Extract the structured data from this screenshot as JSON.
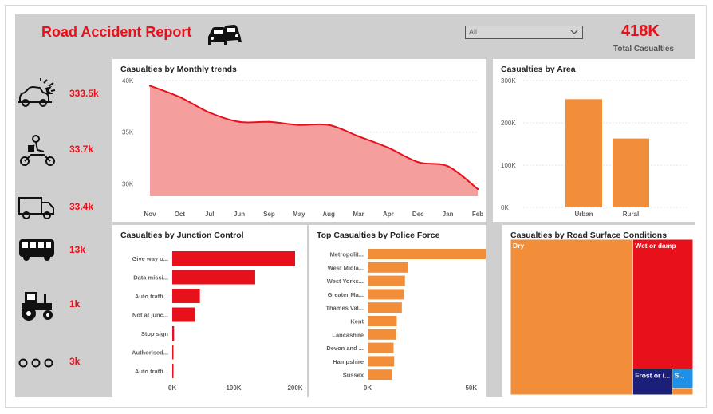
{
  "header": {
    "title": "Road Accident Report",
    "slicer_value": "All",
    "total_value": "418K",
    "total_label": "Total Casualties"
  },
  "vehicles": [
    {
      "icon": "car-crash-icon",
      "value": "333.5k"
    },
    {
      "icon": "motorbike-icon",
      "value": "33.7k"
    },
    {
      "icon": "truck-icon",
      "value": "33.4k"
    },
    {
      "icon": "bus-icon",
      "value": "13k"
    },
    {
      "icon": "tractor-icon",
      "value": "1k"
    },
    {
      "icon": "other-icon",
      "value": "3k"
    }
  ],
  "colors": {
    "red": "#e8101a",
    "orange": "#f28e3a",
    "line_fill": "#f59e9e",
    "navy": "#1b1f7a",
    "blue": "#1e90e8"
  },
  "chart_data": [
    {
      "id": "monthly",
      "type": "area",
      "title": "Casualties by Monthly trends",
      "categories": [
        "Nov",
        "Oct",
        "Jul",
        "Jun",
        "Sep",
        "May",
        "Aug",
        "Mar",
        "Apr",
        "Dec",
        "Jan",
        "Feb"
      ],
      "values": [
        39500,
        38400,
        36900,
        36000,
        36000,
        35700,
        35700,
        34600,
        33500,
        32100,
        31700,
        29500
      ],
      "ylim": [
        28800,
        40000
      ],
      "yticks": [
        {
          "v": 40000,
          "label": "40K"
        },
        {
          "v": 35000,
          "label": "35K"
        },
        {
          "v": 30000,
          "label": "30K"
        }
      ]
    },
    {
      "id": "area",
      "type": "bar",
      "title": "Casualties by Area",
      "categories": [
        "Urban",
        "Rural"
      ],
      "values": [
        256000,
        163000
      ],
      "ylim": [
        0,
        300000
      ],
      "yticks": [
        {
          "v": 300000,
          "label": "300K"
        },
        {
          "v": 200000,
          "label": "200K"
        },
        {
          "v": 100000,
          "label": "100K"
        },
        {
          "v": 0,
          "label": "0K"
        }
      ]
    },
    {
      "id": "junction",
      "type": "bar",
      "orientation": "horizontal",
      "title": "Casualties by Junction Control",
      "categories": [
        "Give way o...",
        "Data missi...",
        "Auto traffi...",
        "Not at junc...",
        "Stop sign",
        "Authorised...",
        "Auto traffi..."
      ],
      "values": [
        200000,
        135000,
        45000,
        37000,
        3000,
        1500,
        1200
      ],
      "xlim": [
        0,
        200000
      ],
      "xticks": [
        {
          "v": 0,
          "label": "0K"
        },
        {
          "v": 100000,
          "label": "100K"
        },
        {
          "v": 200000,
          "label": "200K"
        }
      ]
    },
    {
      "id": "police",
      "type": "bar",
      "orientation": "horizontal",
      "title": "Top Casualties by Police Force",
      "categories": [
        "Metropolit...",
        "West Midla...",
        "West Yorks...",
        "Greater Ma...",
        "Thames Val...",
        "Kent",
        "Lancashire",
        "Devon and ...",
        "Hampshire",
        "Sussex"
      ],
      "values": [
        57000,
        19500,
        18000,
        17500,
        16500,
        14000,
        13800,
        12500,
        12800,
        11800
      ],
      "xlim": [
        0,
        57000
      ],
      "xticks": [
        {
          "v": 0,
          "label": "0K"
        },
        {
          "v": 50000,
          "label": "50K"
        }
      ]
    },
    {
      "id": "surface",
      "type": "treemap",
      "title": "Casualties by Road Surface Conditions",
      "items": [
        {
          "label": "Dry",
          "value": 279000
        },
        {
          "label": "Wet or damp",
          "value": 115000
        },
        {
          "label": "Frost or i...",
          "value": 15000
        },
        {
          "label": "S...",
          "value": 6000
        },
        {
          "label": "",
          "value": 2000
        }
      ]
    }
  ]
}
